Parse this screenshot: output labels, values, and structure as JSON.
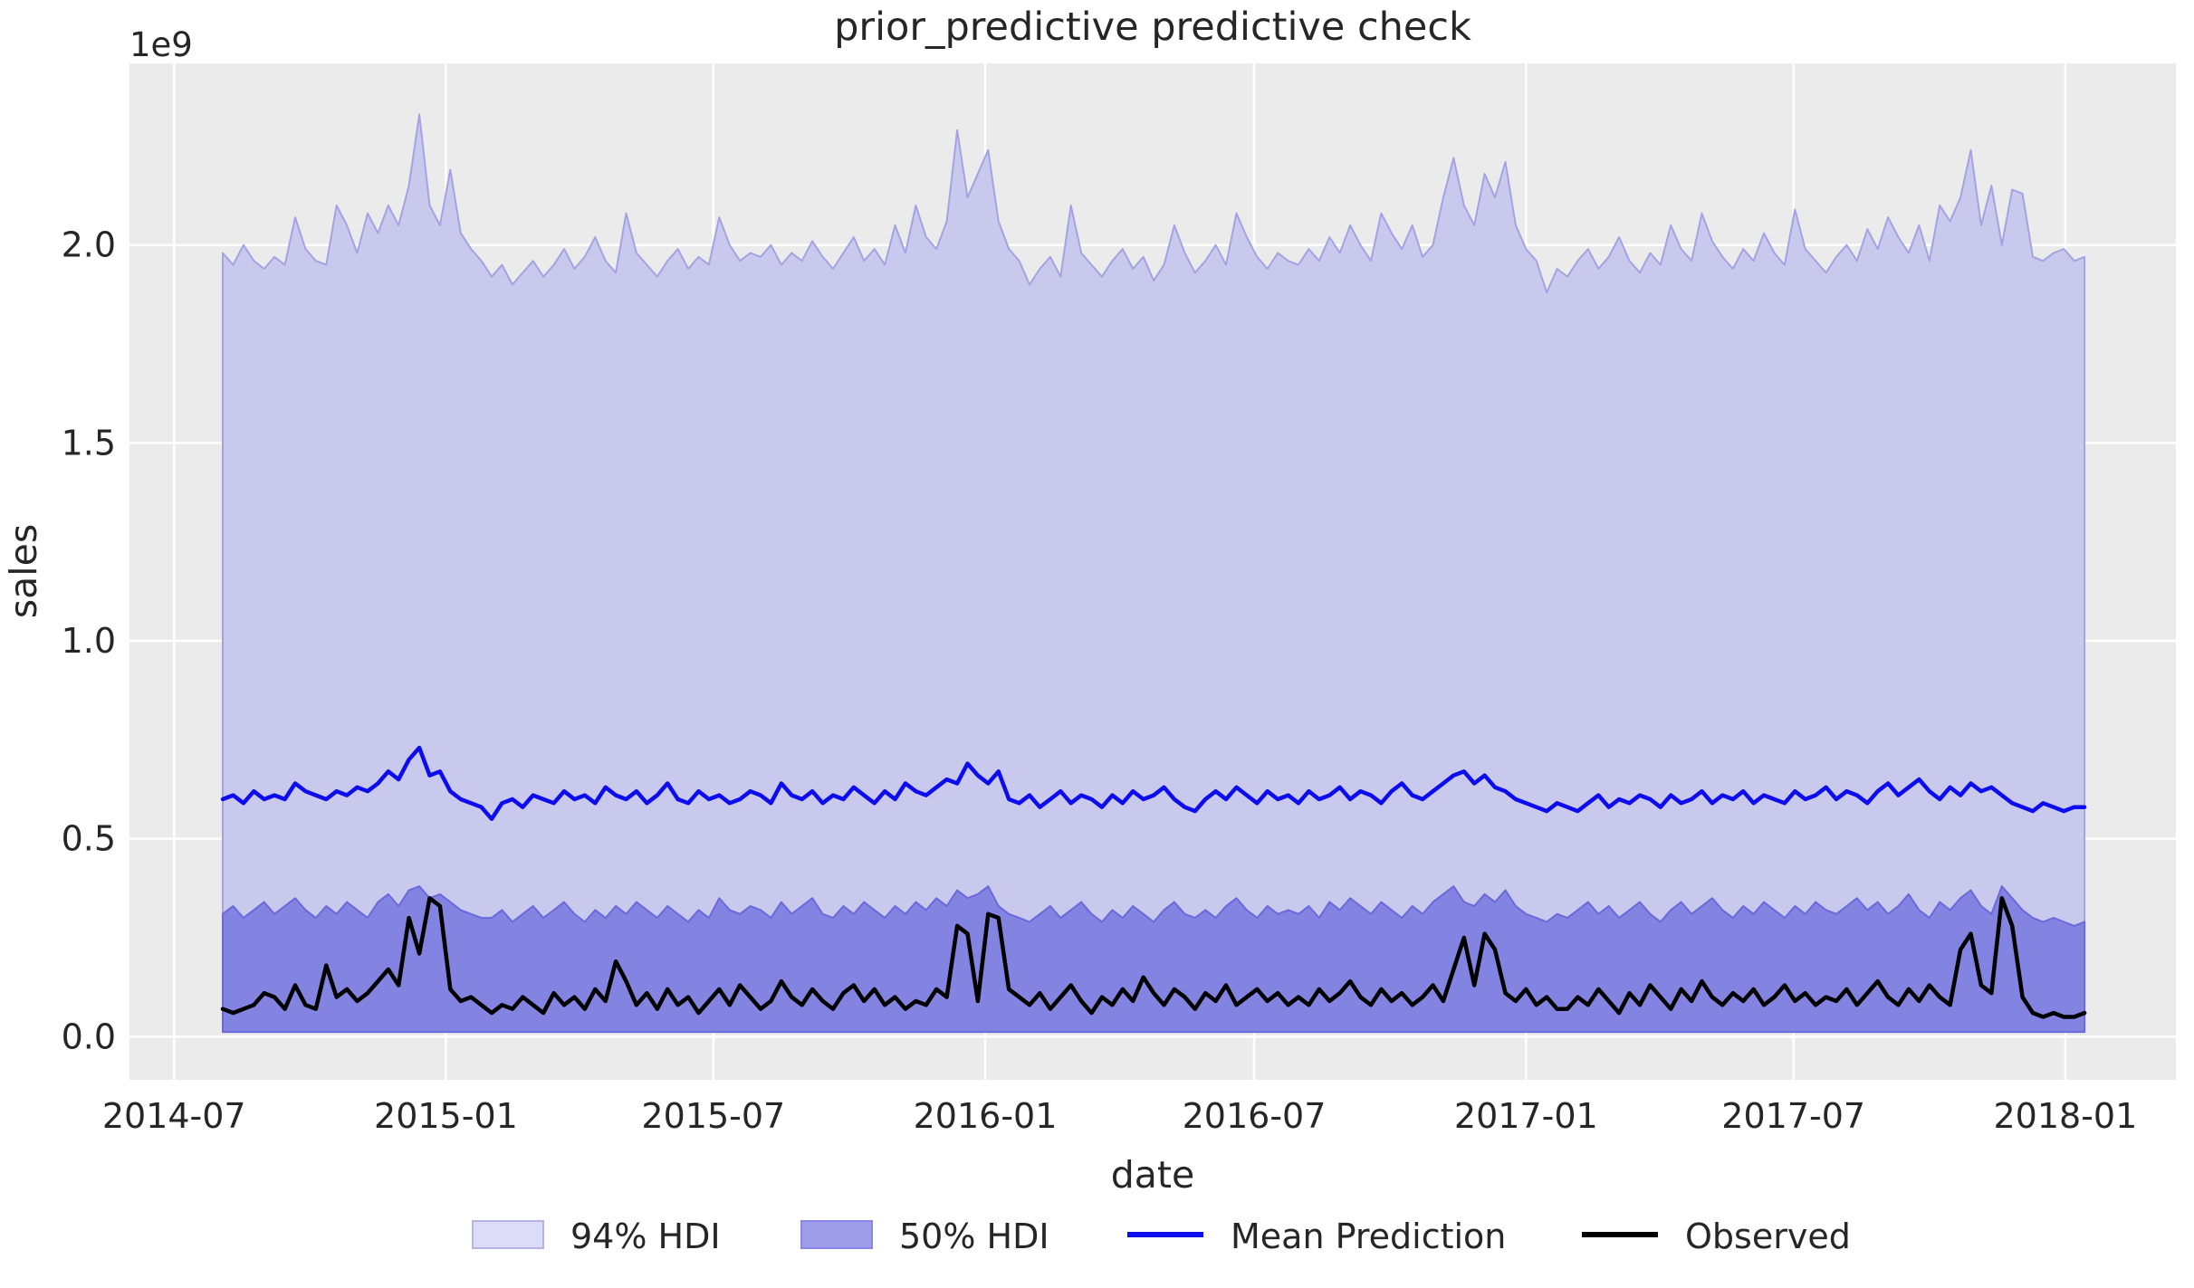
{
  "chart_data": {
    "type": "line",
    "title": "prior_predictive predictive check",
    "xlabel": "date",
    "ylabel": "sales",
    "y_axis_offset_label": "1e9",
    "grid": true,
    "plot_bg": "#ebebeb",
    "grid_color": "#ffffff",
    "text_color": "#262626",
    "ylim": [
      -0.109,
      2.459
    ],
    "xlim_weeks": [
      -9.02,
      188.83
    ],
    "x_ticks": [
      {
        "label": "2014-07",
        "week": -4.71
      },
      {
        "label": "2015-01",
        "week": 21.57
      },
      {
        "label": "2015-07",
        "week": 47.43
      },
      {
        "label": "2016-01",
        "week": 73.71
      },
      {
        "label": "2016-07",
        "week": 99.71
      },
      {
        "label": "2017-01",
        "week": 126.0
      },
      {
        "label": "2017-07",
        "week": 151.86
      },
      {
        "label": "2018-01",
        "week": 178.14
      }
    ],
    "y_ticks": [
      {
        "label": "0.0",
        "value": 0.0
      },
      {
        "label": "0.5",
        "value": 0.5
      },
      {
        "label": "1.0",
        "value": 1.0
      },
      {
        "label": "1.5",
        "value": 1.5
      },
      {
        "label": "2.0",
        "value": 2.0
      }
    ],
    "hdi_lower_bound": 0.012,
    "colors": {
      "hdi94_fill": "#c9c9ee",
      "hdi94_edge": "#a3a3e4",
      "hdi50_fill": "#8383e2",
      "hdi50_edge": "#6969db",
      "mean_line": "#0c0cee",
      "observed_line": "#000000"
    },
    "series": [
      {
        "name": "94% HDI upper",
        "values": [
          1.98,
          1.95,
          2.0,
          1.96,
          1.94,
          1.97,
          1.95,
          2.07,
          1.99,
          1.96,
          1.95,
          2.1,
          2.05,
          1.98,
          2.08,
          2.03,
          2.1,
          2.05,
          2.15,
          2.33,
          2.1,
          2.05,
          2.19,
          2.03,
          1.99,
          1.96,
          1.92,
          1.95,
          1.9,
          1.93,
          1.96,
          1.92,
          1.95,
          1.99,
          1.94,
          1.97,
          2.02,
          1.96,
          1.93,
          2.08,
          1.98,
          1.95,
          1.92,
          1.96,
          1.99,
          1.94,
          1.97,
          1.95,
          2.07,
          2.0,
          1.96,
          1.98,
          1.97,
          2.0,
          1.95,
          1.98,
          1.96,
          2.01,
          1.97,
          1.94,
          1.98,
          2.02,
          1.96,
          1.99,
          1.95,
          2.05,
          1.98,
          2.1,
          2.02,
          1.99,
          2.06,
          2.29,
          2.12,
          2.18,
          2.24,
          2.06,
          1.99,
          1.96,
          1.9,
          1.94,
          1.97,
          1.92,
          2.1,
          1.98,
          1.95,
          1.92,
          1.96,
          1.99,
          1.94,
          1.97,
          1.91,
          1.95,
          2.05,
          1.98,
          1.93,
          1.96,
          2.0,
          1.95,
          2.08,
          2.02,
          1.97,
          1.94,
          1.98,
          1.96,
          1.95,
          1.99,
          1.96,
          2.02,
          1.98,
          2.05,
          2.0,
          1.96,
          2.08,
          2.03,
          1.99,
          2.05,
          1.97,
          2.0,
          2.12,
          2.22,
          2.1,
          2.05,
          2.18,
          2.12,
          2.21,
          2.05,
          1.99,
          1.96,
          1.88,
          1.94,
          1.92,
          1.96,
          1.99,
          1.94,
          1.97,
          2.02,
          1.96,
          1.93,
          1.98,
          1.95,
          2.05,
          1.99,
          1.96,
          2.08,
          2.01,
          1.97,
          1.94,
          1.99,
          1.96,
          2.03,
          1.98,
          1.95,
          2.09,
          1.99,
          1.96,
          1.93,
          1.97,
          2.0,
          1.96,
          2.04,
          1.99,
          2.07,
          2.02,
          1.98,
          2.05,
          1.96,
          2.1,
          2.06,
          2.12,
          2.24,
          2.05,
          2.15,
          2.0,
          2.14,
          2.13,
          1.97,
          1.96,
          1.98,
          1.99,
          1.96,
          1.97
        ]
      },
      {
        "name": "50% HDI upper",
        "values": [
          0.31,
          0.33,
          0.3,
          0.32,
          0.34,
          0.31,
          0.33,
          0.35,
          0.32,
          0.3,
          0.33,
          0.31,
          0.34,
          0.32,
          0.3,
          0.34,
          0.36,
          0.33,
          0.37,
          0.38,
          0.35,
          0.36,
          0.34,
          0.32,
          0.31,
          0.3,
          0.3,
          0.32,
          0.29,
          0.31,
          0.33,
          0.3,
          0.32,
          0.34,
          0.31,
          0.29,
          0.32,
          0.3,
          0.33,
          0.31,
          0.34,
          0.32,
          0.3,
          0.33,
          0.31,
          0.29,
          0.32,
          0.3,
          0.35,
          0.32,
          0.31,
          0.33,
          0.32,
          0.3,
          0.34,
          0.31,
          0.33,
          0.35,
          0.31,
          0.3,
          0.33,
          0.31,
          0.34,
          0.32,
          0.3,
          0.33,
          0.31,
          0.34,
          0.32,
          0.35,
          0.33,
          0.37,
          0.35,
          0.36,
          0.38,
          0.33,
          0.31,
          0.3,
          0.29,
          0.31,
          0.33,
          0.3,
          0.32,
          0.34,
          0.31,
          0.29,
          0.32,
          0.3,
          0.33,
          0.31,
          0.29,
          0.32,
          0.34,
          0.31,
          0.3,
          0.32,
          0.3,
          0.33,
          0.35,
          0.32,
          0.3,
          0.33,
          0.31,
          0.32,
          0.31,
          0.33,
          0.3,
          0.34,
          0.32,
          0.35,
          0.33,
          0.31,
          0.34,
          0.32,
          0.3,
          0.33,
          0.31,
          0.34,
          0.36,
          0.38,
          0.34,
          0.33,
          0.36,
          0.34,
          0.37,
          0.33,
          0.31,
          0.3,
          0.29,
          0.31,
          0.3,
          0.32,
          0.34,
          0.31,
          0.33,
          0.3,
          0.32,
          0.34,
          0.31,
          0.29,
          0.32,
          0.34,
          0.31,
          0.33,
          0.35,
          0.32,
          0.3,
          0.33,
          0.31,
          0.34,
          0.32,
          0.3,
          0.33,
          0.31,
          0.34,
          0.32,
          0.31,
          0.33,
          0.35,
          0.32,
          0.34,
          0.31,
          0.33,
          0.36,
          0.32,
          0.3,
          0.34,
          0.32,
          0.35,
          0.37,
          0.33,
          0.31,
          0.38,
          0.35,
          0.32,
          0.3,
          0.29,
          0.3,
          0.29,
          0.28,
          0.29
        ]
      },
      {
        "name": "Mean Prediction",
        "values": [
          0.6,
          0.61,
          0.59,
          0.62,
          0.6,
          0.61,
          0.6,
          0.64,
          0.62,
          0.61,
          0.6,
          0.62,
          0.61,
          0.63,
          0.62,
          0.64,
          0.67,
          0.65,
          0.7,
          0.73,
          0.66,
          0.67,
          0.62,
          0.6,
          0.59,
          0.58,
          0.55,
          0.59,
          0.6,
          0.58,
          0.61,
          0.6,
          0.59,
          0.62,
          0.6,
          0.61,
          0.59,
          0.63,
          0.61,
          0.6,
          0.62,
          0.59,
          0.61,
          0.64,
          0.6,
          0.59,
          0.62,
          0.6,
          0.61,
          0.59,
          0.6,
          0.62,
          0.61,
          0.59,
          0.64,
          0.61,
          0.6,
          0.62,
          0.59,
          0.61,
          0.6,
          0.63,
          0.61,
          0.59,
          0.62,
          0.6,
          0.64,
          0.62,
          0.61,
          0.63,
          0.65,
          0.64,
          0.69,
          0.66,
          0.64,
          0.67,
          0.6,
          0.59,
          0.61,
          0.58,
          0.6,
          0.62,
          0.59,
          0.61,
          0.6,
          0.58,
          0.61,
          0.59,
          0.62,
          0.6,
          0.61,
          0.63,
          0.6,
          0.58,
          0.57,
          0.6,
          0.62,
          0.6,
          0.63,
          0.61,
          0.59,
          0.62,
          0.6,
          0.61,
          0.59,
          0.62,
          0.6,
          0.61,
          0.63,
          0.6,
          0.62,
          0.61,
          0.59,
          0.62,
          0.64,
          0.61,
          0.6,
          0.62,
          0.64,
          0.66,
          0.67,
          0.64,
          0.66,
          0.63,
          0.62,
          0.6,
          0.59,
          0.58,
          0.57,
          0.59,
          0.58,
          0.57,
          0.59,
          0.61,
          0.58,
          0.6,
          0.59,
          0.61,
          0.6,
          0.58,
          0.61,
          0.59,
          0.6,
          0.62,
          0.59,
          0.61,
          0.6,
          0.62,
          0.59,
          0.61,
          0.6,
          0.59,
          0.62,
          0.6,
          0.61,
          0.63,
          0.6,
          0.62,
          0.61,
          0.59,
          0.62,
          0.64,
          0.61,
          0.63,
          0.65,
          0.62,
          0.6,
          0.63,
          0.61,
          0.64,
          0.62,
          0.63,
          0.61,
          0.59,
          0.58,
          0.57,
          0.59,
          0.58,
          0.57,
          0.58,
          0.58
        ]
      },
      {
        "name": "Observed",
        "values": [
          0.07,
          0.06,
          0.07,
          0.08,
          0.11,
          0.1,
          0.07,
          0.13,
          0.08,
          0.07,
          0.18,
          0.1,
          0.12,
          0.09,
          0.11,
          0.14,
          0.17,
          0.13,
          0.3,
          0.21,
          0.35,
          0.33,
          0.12,
          0.09,
          0.1,
          0.08,
          0.06,
          0.08,
          0.07,
          0.1,
          0.08,
          0.06,
          0.11,
          0.08,
          0.1,
          0.07,
          0.12,
          0.09,
          0.19,
          0.14,
          0.08,
          0.11,
          0.07,
          0.12,
          0.08,
          0.1,
          0.06,
          0.09,
          0.12,
          0.08,
          0.13,
          0.1,
          0.07,
          0.09,
          0.14,
          0.1,
          0.08,
          0.12,
          0.09,
          0.07,
          0.11,
          0.13,
          0.09,
          0.12,
          0.08,
          0.1,
          0.07,
          0.09,
          0.08,
          0.12,
          0.1,
          0.28,
          0.26,
          0.09,
          0.31,
          0.3,
          0.12,
          0.1,
          0.08,
          0.11,
          0.07,
          0.1,
          0.13,
          0.09,
          0.06,
          0.1,
          0.08,
          0.12,
          0.09,
          0.15,
          0.11,
          0.08,
          0.12,
          0.1,
          0.07,
          0.11,
          0.09,
          0.13,
          0.08,
          0.1,
          0.12,
          0.09,
          0.11,
          0.08,
          0.1,
          0.08,
          0.12,
          0.09,
          0.11,
          0.14,
          0.1,
          0.08,
          0.12,
          0.09,
          0.11,
          0.08,
          0.1,
          0.13,
          0.09,
          0.17,
          0.25,
          0.13,
          0.26,
          0.22,
          0.11,
          0.09,
          0.12,
          0.08,
          0.1,
          0.07,
          0.07,
          0.1,
          0.08,
          0.12,
          0.09,
          0.06,
          0.11,
          0.08,
          0.13,
          0.1,
          0.07,
          0.12,
          0.09,
          0.14,
          0.1,
          0.08,
          0.11,
          0.09,
          0.12,
          0.08,
          0.1,
          0.13,
          0.09,
          0.11,
          0.08,
          0.1,
          0.09,
          0.12,
          0.08,
          0.11,
          0.14,
          0.1,
          0.08,
          0.12,
          0.09,
          0.13,
          0.1,
          0.08,
          0.22,
          0.26,
          0.13,
          0.11,
          0.35,
          0.28,
          0.1,
          0.06,
          0.05,
          0.06,
          0.05,
          0.05,
          0.06
        ]
      }
    ],
    "legend": {
      "position": "bottom-center",
      "items": [
        {
          "label": "94% HDI",
          "type": "patch",
          "fill": "#dcdcf8",
          "edge": "#b3b3ec"
        },
        {
          "label": "50% HDI",
          "type": "patch",
          "fill": "#9d9dea",
          "edge": "#8888e3"
        },
        {
          "label": "Mean Prediction",
          "type": "line",
          "color": "#0c0cee"
        },
        {
          "label": "Observed",
          "type": "line",
          "color": "#000000"
        }
      ]
    }
  }
}
